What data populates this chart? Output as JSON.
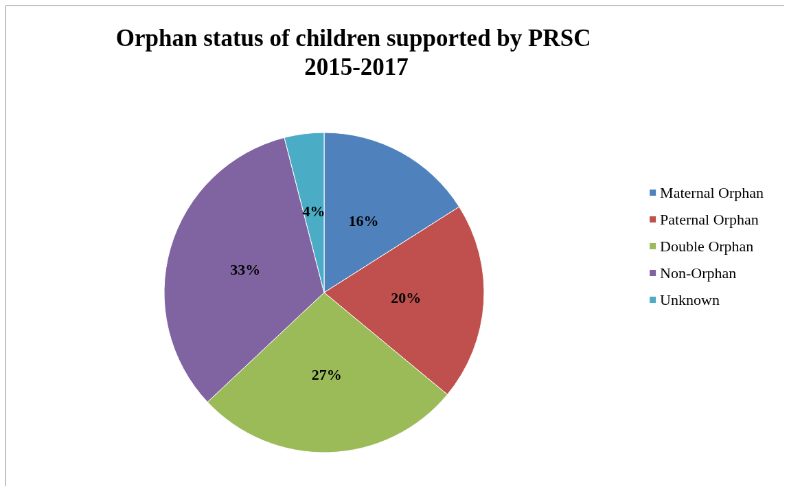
{
  "chart_data": {
    "type": "pie",
    "title": "Orphan status of children supported by PRSC 2015-2017",
    "categories": [
      "Maternal Orphan",
      "Paternal Orphan",
      "Double Orphan",
      "Non-Orphan",
      "Unknown"
    ],
    "values": [
      16,
      20,
      27,
      33,
      4
    ],
    "colors": [
      "#4f81bd",
      "#c0504d",
      "#9bbb59",
      "#8064a2",
      "#4bacc6"
    ],
    "value_labels": [
      "16%",
      "20%",
      "27%",
      "33%",
      "4%"
    ],
    "legend": "right"
  }
}
